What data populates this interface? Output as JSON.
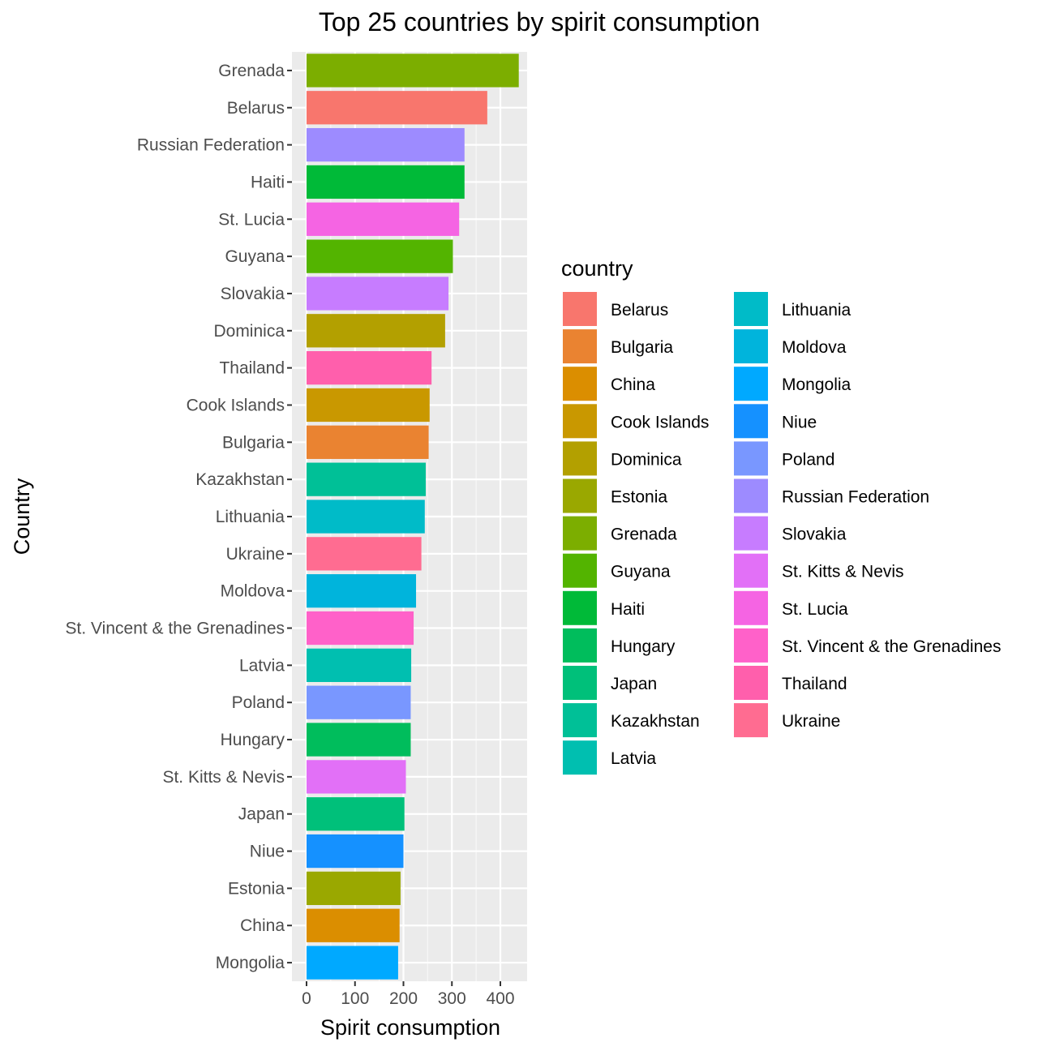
{
  "chart_data": {
    "type": "bar",
    "orientation": "horizontal",
    "title": "Top 25 countries by spirit consumption",
    "xlabel": "Spirit consumption",
    "ylabel": "Country",
    "xlim": [
      0,
      458
    ],
    "xticks": [
      0,
      100,
      200,
      300,
      400
    ],
    "grid": true,
    "categories": [
      "Grenada",
      "Belarus",
      "Russian Federation",
      "Haiti",
      "St. Lucia",
      "Guyana",
      "Slovakia",
      "Dominica",
      "Thailand",
      "Cook Islands",
      "Bulgaria",
      "Kazakhstan",
      "Lithuania",
      "Ukraine",
      "Moldova",
      "St. Vincent & the Grenadines",
      "Latvia",
      "Poland",
      "Hungary",
      "St. Kitts & Nevis",
      "Japan",
      "Niue",
      "Estonia",
      "China",
      "Mongolia"
    ],
    "values": [
      438,
      373,
      326,
      326,
      315,
      302,
      293,
      286,
      258,
      254,
      252,
      246,
      244,
      237,
      226,
      221,
      216,
      215,
      215,
      205,
      202,
      200,
      194,
      192,
      189
    ],
    "colors": {
      "Belarus": "#F8766D",
      "Bulgaria": "#EA8331",
      "China": "#DB8E00",
      "Cook Islands": "#C99800",
      "Dominica": "#B3A000",
      "Estonia": "#9AA800",
      "Grenada": "#7CAE00",
      "Guyana": "#53B400",
      "Haiti": "#00BA38",
      "Hungary": "#00BD5C",
      "Japan": "#00C07A",
      "Kazakhstan": "#00C097",
      "Latvia": "#00BFB0",
      "Lithuania": "#00BBC8",
      "Moldova": "#00B4DC",
      "Mongolia": "#00A9FF",
      "Niue": "#1591FF",
      "Poland": "#7997FF",
      "Russian Federation": "#9D8BFF",
      "Slovakia": "#C77CFF",
      "St. Kitts & Nevis": "#E270F7",
      "St. Lucia": "#F564E3",
      "St. Vincent & the Grenadines": "#FF61C9",
      "Thailand": "#FF5FAC",
      "Ukraine": "#FF6C91"
    },
    "legend": {
      "title": "country",
      "placement": "right",
      "columns": 2,
      "items": [
        "Belarus",
        "Bulgaria",
        "China",
        "Cook Islands",
        "Dominica",
        "Estonia",
        "Grenada",
        "Guyana",
        "Haiti",
        "Hungary",
        "Japan",
        "Kazakhstan",
        "Latvia",
        "Lithuania",
        "Moldova",
        "Mongolia",
        "Niue",
        "Poland",
        "Russian Federation",
        "Slovakia",
        "St. Kitts & Nevis",
        "St. Lucia",
        "St. Vincent & the Grenadines",
        "Thailand",
        "Ukraine"
      ]
    }
  }
}
